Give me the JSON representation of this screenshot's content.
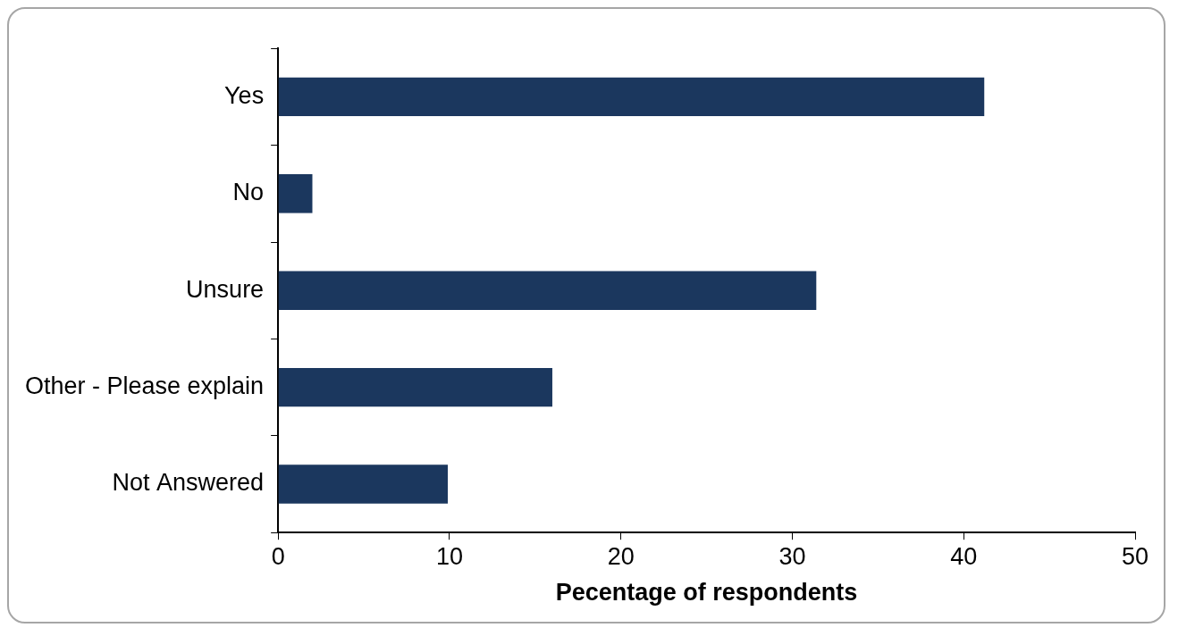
{
  "chart_data": {
    "type": "bar",
    "orientation": "horizontal",
    "categories": [
      "Yes",
      "No",
      "Unsure",
      "Other - Please explain",
      "Not Answered"
    ],
    "values": [
      41.2,
      2.0,
      31.4,
      16.0,
      9.9
    ],
    "color": "#1b375e",
    "x_label": "Pecentage of respondents",
    "xlim": [
      0,
      50
    ],
    "xticks": [
      0,
      10,
      20,
      30,
      40,
      50
    ],
    "grid": false
  }
}
